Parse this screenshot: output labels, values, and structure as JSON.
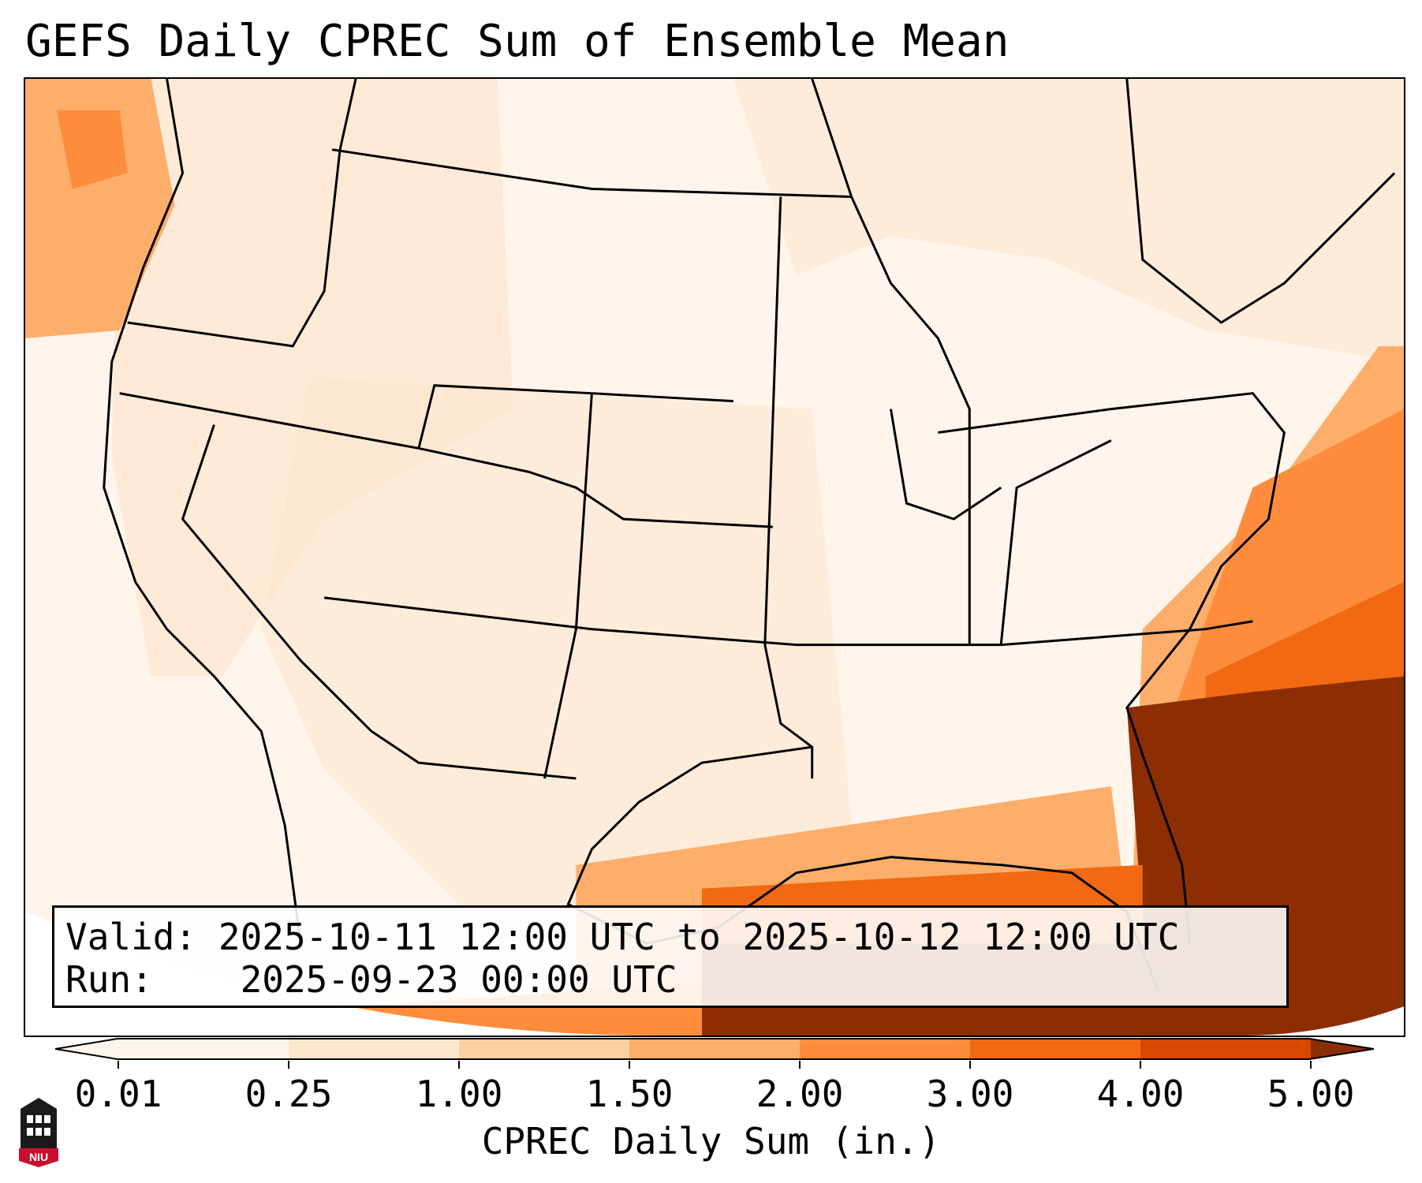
{
  "title": "GEFS Daily CPREC Sum of Ensemble Mean",
  "info": {
    "valid_label": "Valid:",
    "valid_value": "2025-10-11 12:00 UTC to 2025-10-12 12:00 UTC",
    "run_label": "Run:",
    "run_value": "2025-09-23 00:00 UTC"
  },
  "colorbar": {
    "label": "CPREC Daily Sum (in.)",
    "ticks": [
      "0.01",
      "0.25",
      "1.00",
      "1.50",
      "2.00",
      "3.00",
      "4.00",
      "5.00"
    ],
    "colors": [
      "#fff5eb",
      "#fee6ce",
      "#fdd0a2",
      "#fdae6b",
      "#fd8d3c",
      "#f16913",
      "#d94801",
      "#8c2d04"
    ]
  },
  "logo": {
    "text": "NIU",
    "color": "#c8102e"
  }
}
